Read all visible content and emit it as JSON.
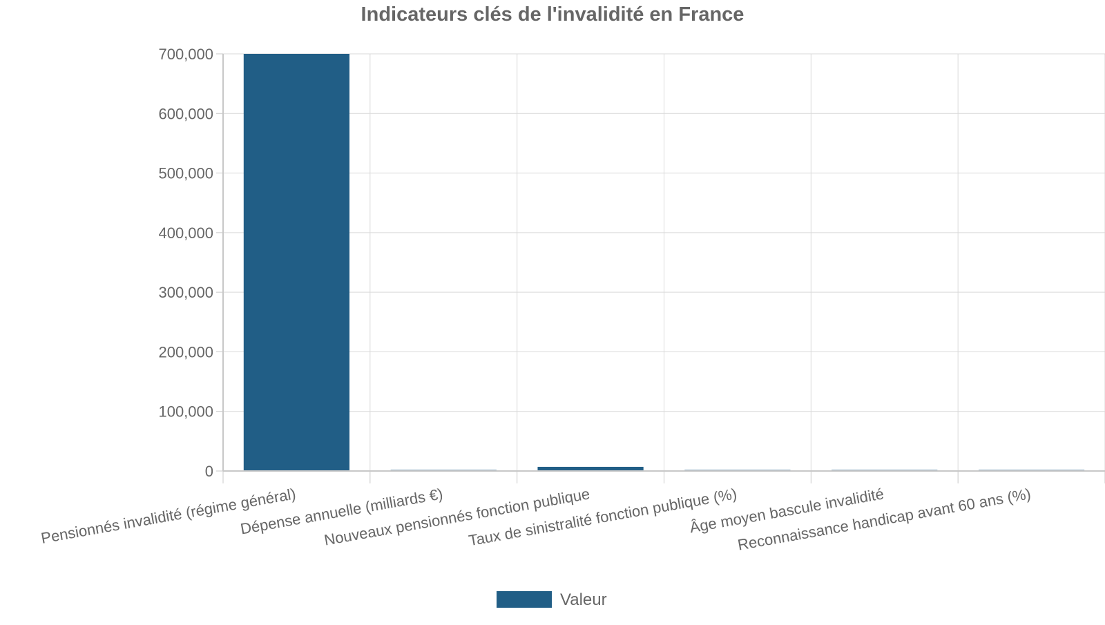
{
  "chart_data": {
    "type": "bar",
    "title": "Indicateurs clés de l'invalidité en France",
    "xlabel": "",
    "ylabel": "",
    "categories": [
      "Pensionnés invalidité (régime général)",
      "Dépense annuelle (milliards €)",
      "Nouveaux pensionnés fonction publique",
      "Taux de sinistralité fonction publique (%)",
      "Âge moyen bascule invalidité",
      "Reconnaissance handicap avant 60 ans (%)"
    ],
    "series": [
      {
        "name": "Valeur",
        "values": [
          700000,
          16,
          7000,
          1,
          55,
          30
        ]
      }
    ],
    "ylim": [
      0,
      700000
    ],
    "yticks": [
      0,
      100000,
      200000,
      300000,
      400000,
      500000,
      600000,
      700000
    ],
    "ytick_labels": [
      "0",
      "100,000",
      "200,000",
      "300,000",
      "400,000",
      "500,000",
      "600,000",
      "700,000"
    ],
    "grid": true,
    "legend": "bottom-center",
    "colors": {
      "bar": "#215e86",
      "grid": "#d9d9d9",
      "axis": "#c8c8c8",
      "text": "#666666"
    }
  }
}
